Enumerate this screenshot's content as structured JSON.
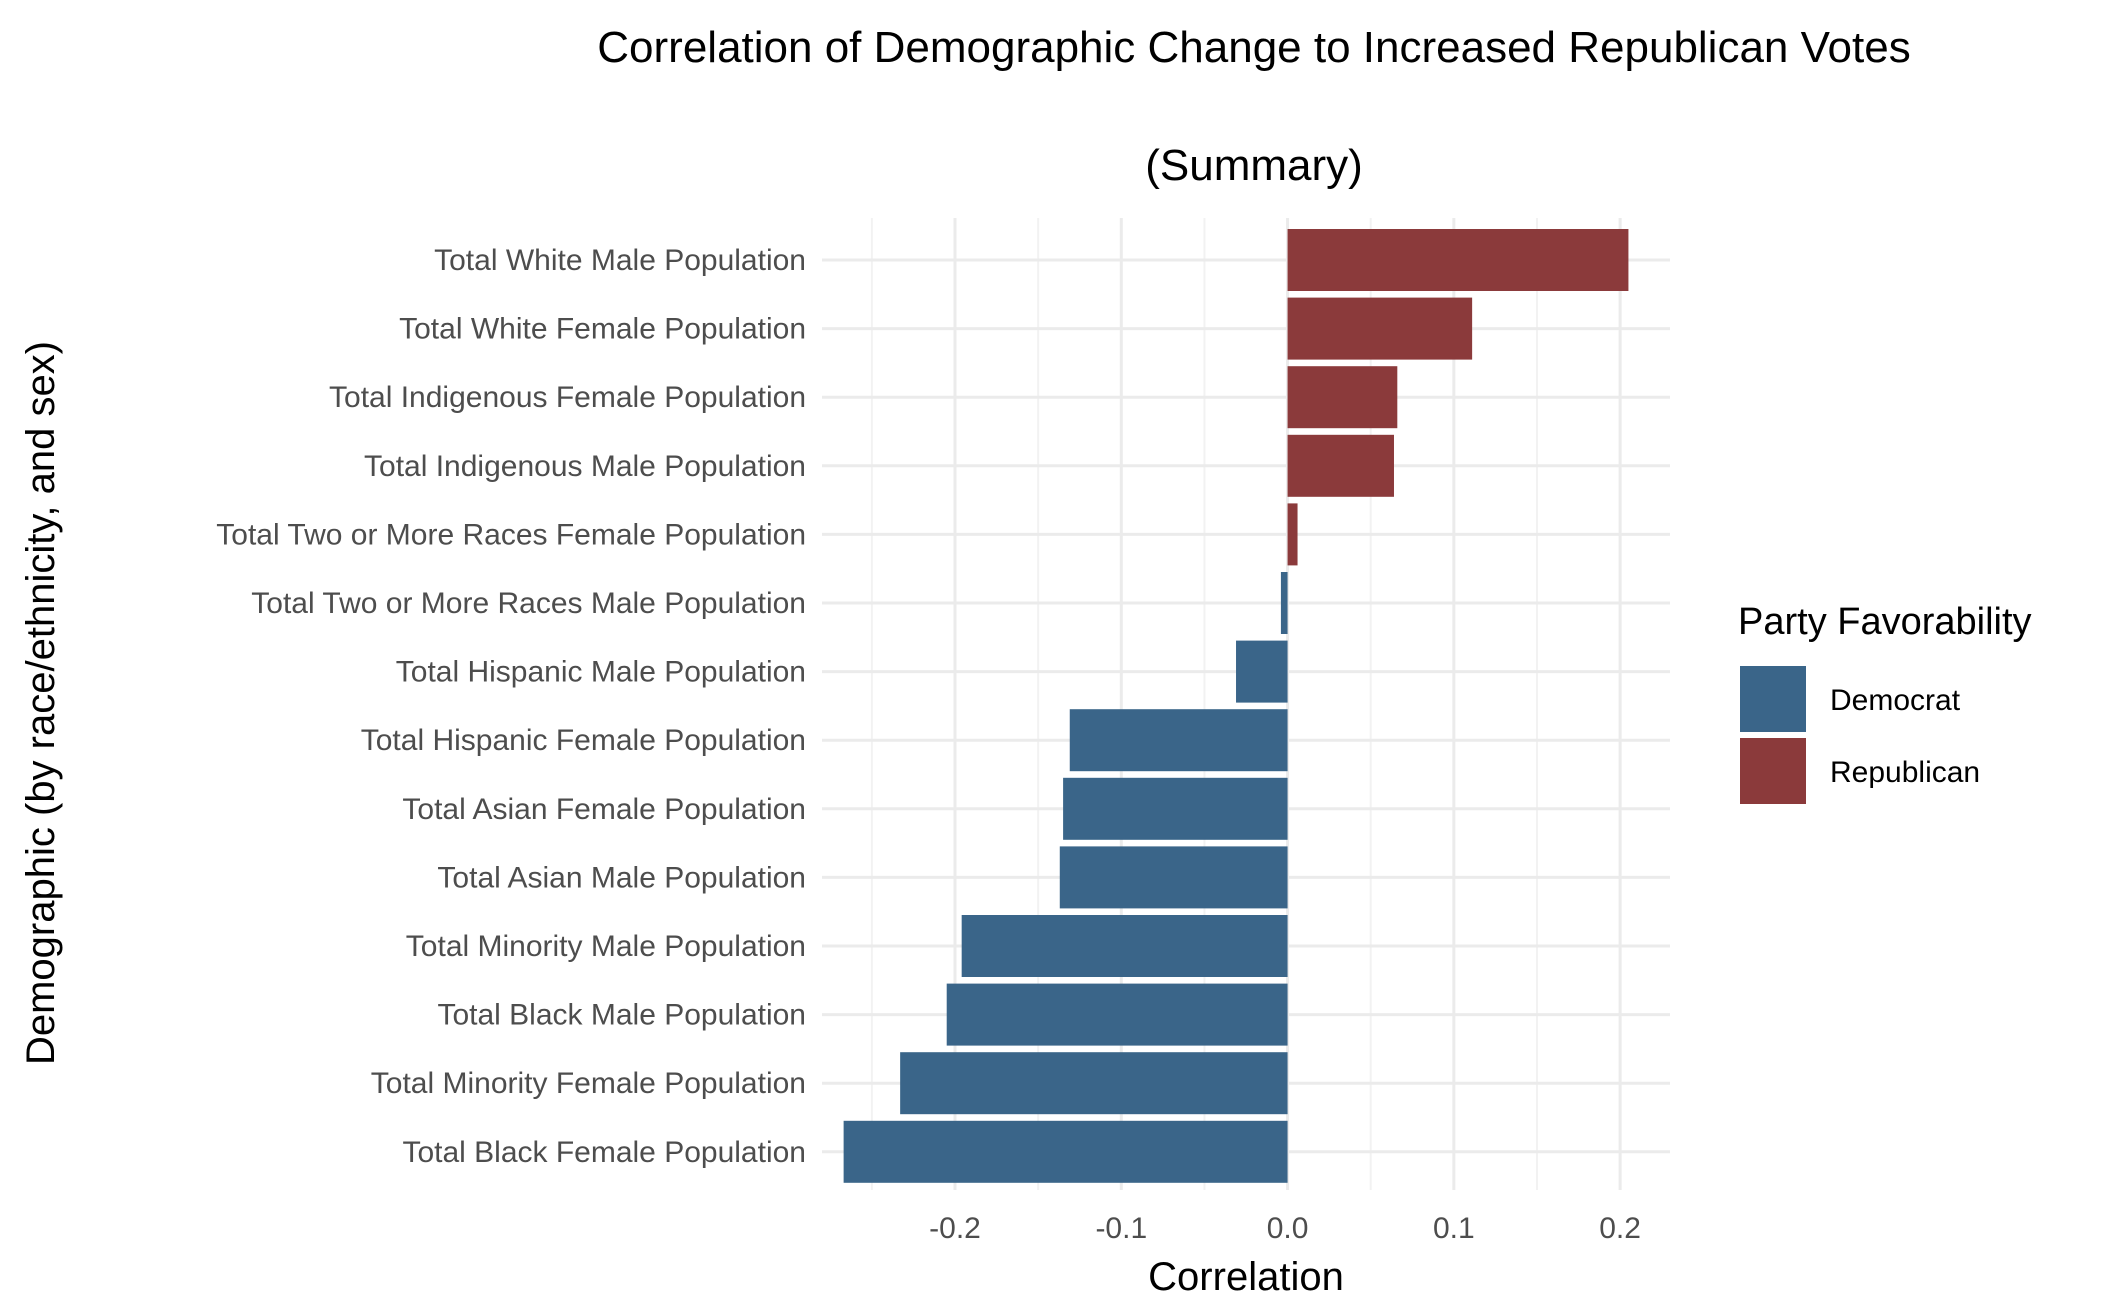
{
  "chart_data": {
    "type": "bar",
    "orientation": "horizontal",
    "title": "Correlation of Demographic Change to Increased Republican Votes",
    "subtitle": "(Summary)",
    "xlabel": "Correlation",
    "ylabel": "Demographic (by race/ethnicity, and sex)",
    "xlim": [
      -0.28,
      0.23
    ],
    "x_ticks": [
      -0.2,
      -0.1,
      0.0,
      0.1,
      0.2
    ],
    "x_tick_labels": [
      "-0.2",
      "-0.1",
      "0.0",
      "0.1",
      "0.2"
    ],
    "grid": true,
    "legend": {
      "title": "Party Favorability",
      "placement": "right",
      "entries": [
        {
          "label": "Democrat",
          "color": "#3a6589"
        },
        {
          "label": "Republican",
          "color": "#8b3a3b"
        }
      ]
    },
    "categories": [
      "Total White Male Population",
      "Total White Female Population",
      "Total Indigenous Female Population",
      "Total Indigenous Male Population",
      "Total Two or More Races Female Population",
      "Total Two or More Races Male Population",
      "Total Hispanic Male Population",
      "Total Hispanic Female Population",
      "Total Asian Female Population",
      "Total Asian Male Population",
      "Total Minority Male Population",
      "Total Black Male Population",
      "Total Minority Female Population",
      "Total Black Female Population"
    ],
    "values": [
      0.205,
      0.111,
      0.066,
      0.064,
      0.006,
      -0.004,
      -0.031,
      -0.131,
      -0.135,
      -0.137,
      -0.196,
      -0.205,
      -0.233,
      -0.267
    ],
    "party": [
      "Republican",
      "Republican",
      "Republican",
      "Republican",
      "Republican",
      "Democrat",
      "Democrat",
      "Democrat",
      "Democrat",
      "Democrat",
      "Democrat",
      "Democrat",
      "Democrat",
      "Democrat"
    ]
  }
}
